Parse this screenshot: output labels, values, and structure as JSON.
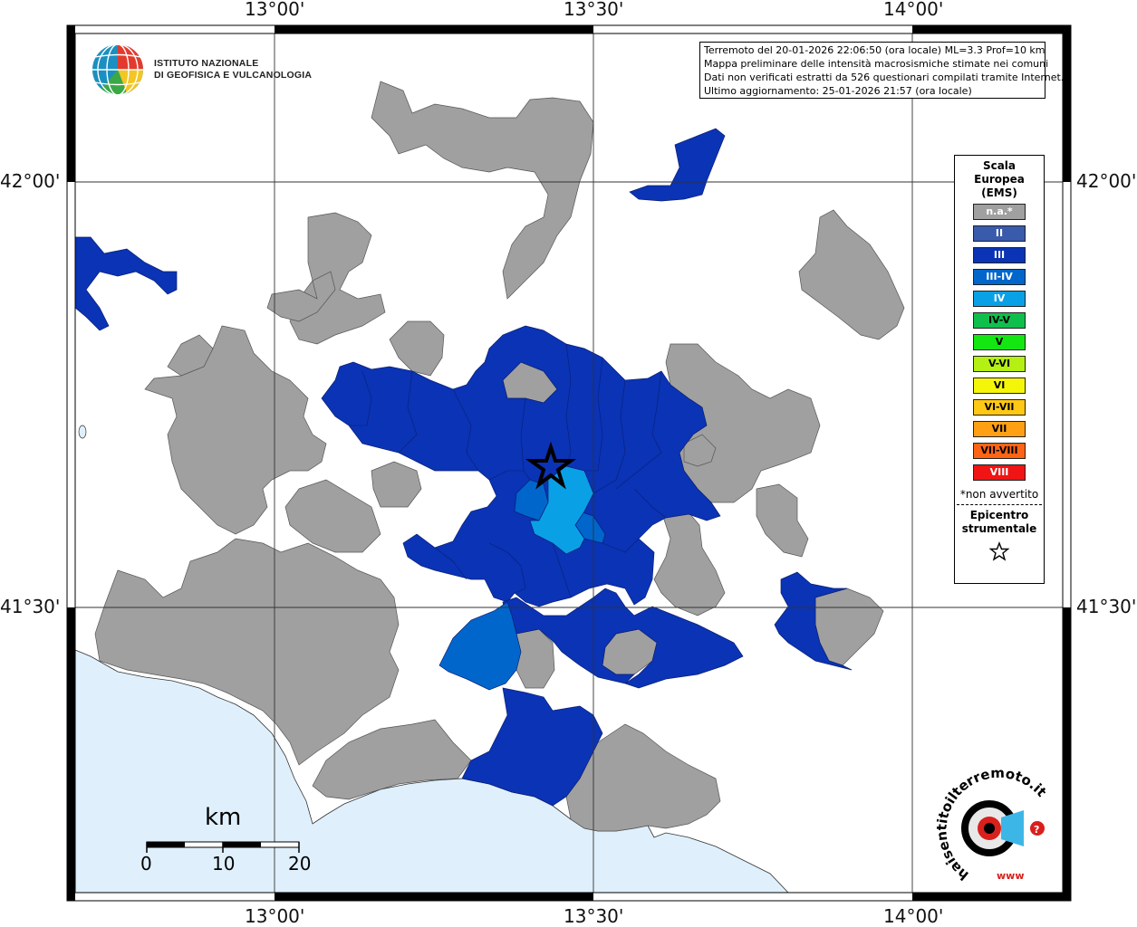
{
  "coordinates": {
    "top": [
      "13°00'",
      "13°30'",
      "14°00'"
    ],
    "bottom": [
      "13°00'",
      "13°30'",
      "14°00'"
    ],
    "left": [
      "42°00'",
      "41°30'"
    ],
    "right": [
      "42°00'",
      "41°30'"
    ]
  },
  "institute": {
    "line1": "ISTITUTO NAZIONALE",
    "line2": "DI GEOFISICA E VULCANOLOGIA"
  },
  "info": {
    "line1": "Terremoto del 20-01-2026 22:06:50 (ora locale) ML=3.3 Prof=10 km",
    "line2": "Mappa preliminare delle intensità macrosismiche stimate nei comuni",
    "line3": "Dati non verificati estratti da 526 questionari compilati tramite Internet.",
    "line4": "Ultimo aggiornamento: 25-01-2026 21:57 (ora locale)"
  },
  "legend": {
    "title1": "Scala",
    "title2": "Europea",
    "title3": "(EMS)",
    "items": [
      {
        "label": "n.a.*",
        "color": "#a0a0a0",
        "text_color": "#ffffff"
      },
      {
        "label": "II",
        "color": "#3a5aac",
        "text_color": "#ffffff"
      },
      {
        "label": "III",
        "color": "#0a33b5",
        "text_color": "#ffffff"
      },
      {
        "label": "III-IV",
        "color": "#0066cc",
        "text_color": "#ffffff"
      },
      {
        "label": "IV",
        "color": "#0aa0e6",
        "text_color": "#ffffff"
      },
      {
        "label": "IV-V",
        "color": "#0fbf4c",
        "text_color": "#000000"
      },
      {
        "label": "V",
        "color": "#14e614",
        "text_color": "#000000"
      },
      {
        "label": "V-VI",
        "color": "#b4f014",
        "text_color": "#000000"
      },
      {
        "label": "VI",
        "color": "#f5f50a",
        "text_color": "#000000"
      },
      {
        "label": "VI-VII",
        "color": "#ffc814",
        "text_color": "#000000"
      },
      {
        "label": "VII",
        "color": "#ffa014",
        "text_color": "#000000"
      },
      {
        "label": "VII-VIII",
        "color": "#ff6414",
        "text_color": "#000000"
      },
      {
        "label": "VIII",
        "color": "#f01414",
        "text_color": "#ffffff"
      }
    ],
    "note": "*non avvertito",
    "epicenter1": "Epicentro",
    "epicenter2": "strumentale"
  },
  "scale_bar": {
    "unit": "km",
    "labels": [
      "0",
      "10",
      "20"
    ]
  },
  "brand": {
    "text": "haisentitoilterremoto.it",
    "www": "www"
  },
  "colors": {
    "sea": "#dff0fc",
    "na": "#a0a0a0",
    "iii": "#0a33b5",
    "iii_iv": "#0066cc",
    "iv": "#0aa0e6"
  }
}
